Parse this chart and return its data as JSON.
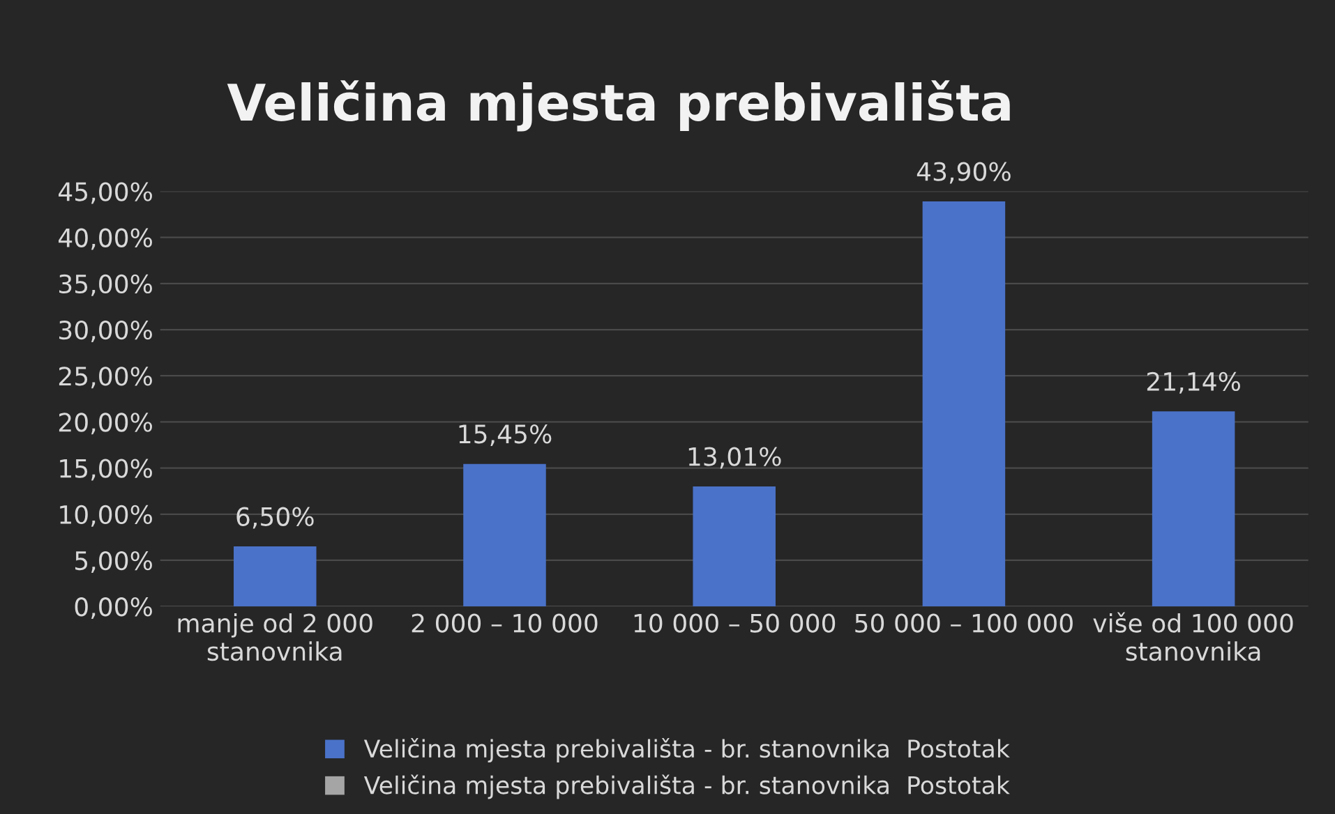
{
  "chart_data": {
    "type": "bar",
    "title": "Veličina mjesta prebivališta",
    "categories": [
      "manje od 2 000 stanovnika",
      "2 000 – 10 000",
      "10 000 – 50 000",
      "50 000 – 100 000",
      "više od 100 000 stanovnika"
    ],
    "series": [
      {
        "name": "Veličina mjesta prebivališta - br. stanovnika  Postotak",
        "color": "#4a72c8",
        "values": [
          6.5,
          15.45,
          13.01,
          43.9,
          21.14
        ],
        "value_labels": [
          "6,50%",
          "15,45%",
          "13,01%",
          "43,90%",
          "21,14%"
        ]
      },
      {
        "name": "Veličina mjesta prebivališta - br. stanovnika  Postotak",
        "color": "#a5a5a5",
        "values": [
          null,
          null,
          null,
          null,
          null
        ]
      }
    ],
    "ylim": [
      0,
      45
    ],
    "yticks": [
      {
        "value": 0,
        "label": "0,00%"
      },
      {
        "value": 5,
        "label": "5,00%"
      },
      {
        "value": 10,
        "label": "10,00%"
      },
      {
        "value": 15,
        "label": "15,00%"
      },
      {
        "value": 20,
        "label": "20,00%"
      },
      {
        "value": 25,
        "label": "25,00%"
      },
      {
        "value": 30,
        "label": "30,00%"
      },
      {
        "value": 35,
        "label": "35,00%"
      },
      {
        "value": 40,
        "label": "40,00%"
      },
      {
        "value": 45,
        "label": "45,00%"
      }
    ],
    "grid": "y",
    "legend": "bottom"
  }
}
